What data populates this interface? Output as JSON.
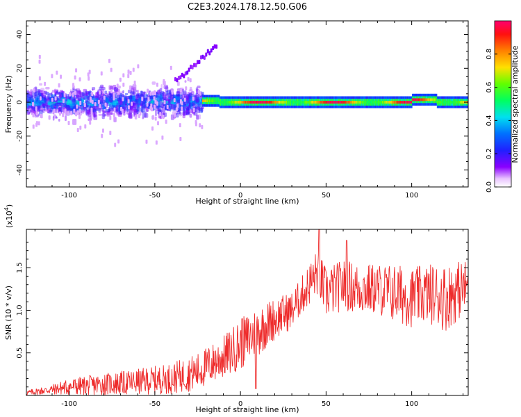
{
  "title": "C2E3.2024.178.12.50.G06",
  "colors": {
    "snr_line": "#ee2b2b",
    "axis": "#000000",
    "background": "#ffffff"
  },
  "chart_data": [
    {
      "type": "heatmap",
      "title": "C2E3.2024.178.12.50.G06",
      "xlabel": "Height of straight line (km)",
      "ylabel": "Frequency (Hz)",
      "xlim": [
        -125,
        133
      ],
      "ylim": [
        -50,
        48
      ],
      "xticks": [
        -100,
        -50,
        0,
        50,
        100
      ],
      "xtick_labels": [
        "-100",
        "-50",
        "0",
        "50",
        "100"
      ],
      "yticks": [
        -40,
        -20,
        0,
        20,
        40
      ],
      "ytick_labels": [
        "-40",
        "-20",
        "0",
        "20",
        "40"
      ],
      "colorbar": {
        "label": "Normalized spectral amplitude",
        "range": [
          0,
          1
        ],
        "ticks": [
          0.0,
          0.2,
          0.4,
          0.6,
          0.8
        ],
        "tick_labels": [
          "0.0",
          "0.2",
          "0.4",
          "0.6",
          "0.8"
        ],
        "colormap": "rainbow: 0 white/violet, 0.2 blue, 0.4 cyan, 0.6 green, 0.8 orange, 1.0 red/magenta"
      },
      "description_of_structure": {
        "scattered_region_x": [
          -125,
          -22
        ],
        "scattered_spread_hz": 10,
        "coherent_region_x": [
          -22,
          133
        ],
        "coherent_line_freq_hz": 0
      }
    },
    {
      "type": "line",
      "xlabel": "Height of straight line (km)",
      "ylabel": "SNR (10 * v/v)",
      "scale_label": "(x10",
      "scale_exponent": "4",
      "xlim": [
        -125,
        133
      ],
      "ylim": [
        0,
        1.95
      ],
      "xticks": [
        -100,
        -50,
        0,
        50,
        100
      ],
      "xtick_labels": [
        "-100",
        "-50",
        "0",
        "50",
        "100"
      ],
      "yticks": [
        0.5,
        1.0,
        1.5
      ],
      "ytick_labels": [
        "0.5",
        "1.0",
        "1.5"
      ],
      "series": [
        {
          "name": "SNR",
          "envelope_x": [
            -125,
            -110,
            -100,
            -80,
            -60,
            -40,
            -25,
            -10,
            0,
            10,
            20,
            30,
            35,
            40,
            45,
            50,
            60,
            70,
            80,
            90,
            100,
            110,
            120,
            133
          ],
          "envelope_mean": [
            0.03,
            0.07,
            0.1,
            0.13,
            0.16,
            0.2,
            0.28,
            0.45,
            0.6,
            0.75,
            0.9,
            1.0,
            1.15,
            1.3,
            1.45,
            1.2,
            1.3,
            1.25,
            1.25,
            1.2,
            1.15,
            1.2,
            1.15,
            1.3
          ],
          "envelope_amp": [
            0.03,
            0.06,
            0.1,
            0.13,
            0.15,
            0.18,
            0.22,
            0.25,
            0.3,
            0.3,
            0.25,
            0.22,
            0.22,
            0.25,
            0.28,
            0.3,
            0.3,
            0.3,
            0.3,
            0.35,
            0.35,
            0.35,
            0.4,
            0.3
          ],
          "peak_points": [
            [
              46,
              1.95
            ],
            [
              62,
              1.82
            ],
            [
              1,
              0.9
            ],
            [
              9,
              0.08
            ]
          ]
        }
      ]
    }
  ]
}
